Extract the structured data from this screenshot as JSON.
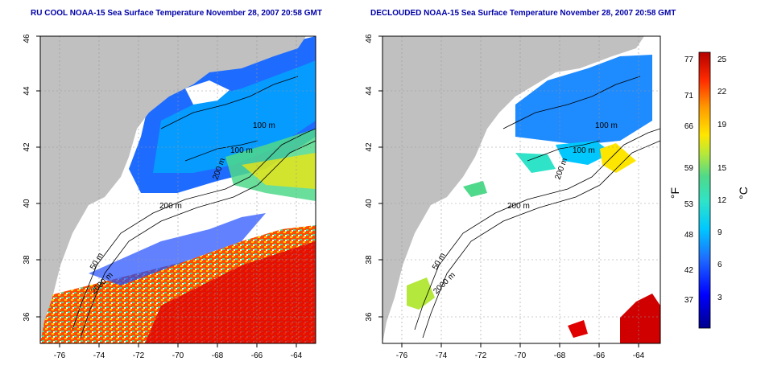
{
  "panels": [
    {
      "title": "RU COOL NOAA-15 Sea Surface Temperature November 28, 2007 20:58 GMT",
      "lon_ticks": [
        "-76",
        "-74",
        "-72",
        "-70",
        "-68",
        "-66",
        "-64"
      ],
      "lat_ticks": [
        "36",
        "38",
        "40",
        "42",
        "44",
        "46"
      ],
      "contour_labels": [
        "100 m",
        "100 m",
        "200 m",
        "200 m",
        "50 m",
        "2000 m"
      ]
    },
    {
      "title": "DECLOUDED NOAA-15 Sea Surface Temperature November 28, 2007 20:58 GMT",
      "lon_ticks": [
        "-76",
        "-74",
        "-72",
        "-70",
        "-68",
        "-66",
        "-64"
      ],
      "lat_ticks": [
        "36",
        "38",
        "40",
        "42",
        "44",
        "46"
      ],
      "contour_labels": [
        "100 m",
        "100 m",
        "200 m",
        "200 m",
        "50 m",
        "2000 m"
      ]
    }
  ],
  "colorbar": {
    "fahrenheit_label": "°F",
    "celsius_label": "°C",
    "fahrenheit_ticks": [
      "77",
      "71",
      "66",
      "59",
      "53",
      "48",
      "42",
      "37"
    ],
    "celsius_ticks": [
      "25",
      "22",
      "19",
      "15",
      "12",
      "9",
      "6",
      "3"
    ]
  },
  "colors": {
    "land": "#c0c0c0",
    "title": "#0000aa",
    "scale": [
      "#00008b",
      "#0000ff",
      "#1e6bff",
      "#00c8ff",
      "#2fe3c8",
      "#4fd98a",
      "#b4e83c",
      "#ffe600",
      "#ff9a00",
      "#ff2a00",
      "#b40000"
    ]
  }
}
